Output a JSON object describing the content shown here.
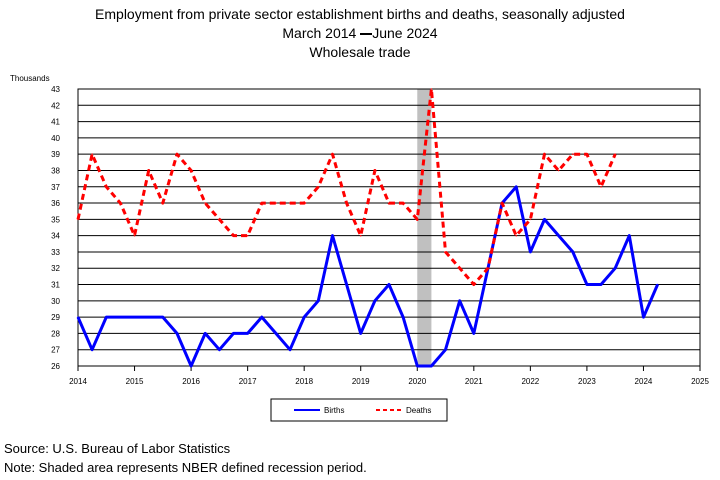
{
  "title": {
    "line1": "Employment from private sector establishment births and deaths, seasonally adjusted",
    "line2_start": "March 2014",
    "line2_end": "June 2024",
    "line3": "Wholesale trade"
  },
  "footer": {
    "source": "Source: U.S. Bureau of Labor Statistics",
    "note": "Note: Shaded area represents NBER defined recession period."
  },
  "colors": {
    "births": "#0000ff",
    "deaths": "#ff0000",
    "recession": "#c0c0c0"
  },
  "chart_data": {
    "type": "line",
    "title": "Employment from private sector establishment births and deaths, seasonally adjusted",
    "ylabel": "Thousands",
    "xlabel": "",
    "ylim": [
      26,
      43
    ],
    "xlim": [
      2014,
      2025
    ],
    "yticks": [
      26,
      27,
      28,
      29,
      30,
      31,
      32,
      33,
      34,
      35,
      36,
      37,
      38,
      39,
      40,
      41,
      42,
      43
    ],
    "xticks": [
      "2014",
      "2015",
      "2016",
      "2017",
      "2018",
      "2019",
      "2020",
      "2021",
      "2022",
      "2023",
      "2024",
      "2025"
    ],
    "grid": true,
    "legend_position": "bottom",
    "recession": {
      "start": 2020.0,
      "end": 2020.25
    },
    "series": [
      {
        "name": "Births",
        "style": "solid",
        "x": [
          2014.0,
          2014.25,
          2014.5,
          2014.75,
          2015.0,
          2015.25,
          2015.5,
          2015.75,
          2016.0,
          2016.25,
          2016.5,
          2016.75,
          2017.0,
          2017.25,
          2017.5,
          2017.75,
          2018.0,
          2018.25,
          2018.5,
          2018.75,
          2019.0,
          2019.25,
          2019.5,
          2019.75,
          2020.0,
          2020.25,
          2020.5,
          2020.75,
          2021.0,
          2021.25,
          2021.5,
          2021.75,
          2022.0,
          2022.25,
          2022.5,
          2022.75,
          2023.0,
          2023.25,
          2023.5,
          2023.75,
          2024.0,
          2024.25
        ],
        "values": [
          29,
          27,
          29,
          29,
          29,
          29,
          29,
          28,
          26,
          28,
          27,
          28,
          28,
          29,
          28,
          27,
          29,
          30,
          34,
          31,
          28,
          30,
          31,
          29,
          26,
          26,
          27,
          30,
          28,
          32,
          36,
          37,
          33,
          35,
          34,
          33,
          31,
          31,
          32,
          34,
          29,
          31
        ]
      },
      {
        "name": "Deaths",
        "style": "dashed",
        "x": [
          2014.0,
          2014.25,
          2014.5,
          2014.75,
          2015.0,
          2015.25,
          2015.5,
          2015.75,
          2016.0,
          2016.25,
          2016.5,
          2016.75,
          2017.0,
          2017.25,
          2017.5,
          2017.75,
          2018.0,
          2018.25,
          2018.5,
          2018.75,
          2019.0,
          2019.25,
          2019.5,
          2019.75,
          2020.0,
          2020.25,
          2020.5,
          2020.75,
          2021.0,
          2021.25,
          2021.5,
          2021.75,
          2022.0,
          2022.25,
          2022.5,
          2022.75,
          2023.0,
          2023.25,
          2023.5
        ],
        "values": [
          35,
          39,
          37,
          36,
          34,
          38,
          36,
          39,
          38,
          36,
          35,
          34,
          34,
          36,
          36,
          36,
          36,
          37,
          39,
          36,
          34,
          38,
          36,
          36,
          35,
          43,
          33,
          32,
          31,
          32,
          36,
          34,
          35,
          39,
          38,
          39,
          39,
          37,
          39
        ]
      }
    ]
  }
}
